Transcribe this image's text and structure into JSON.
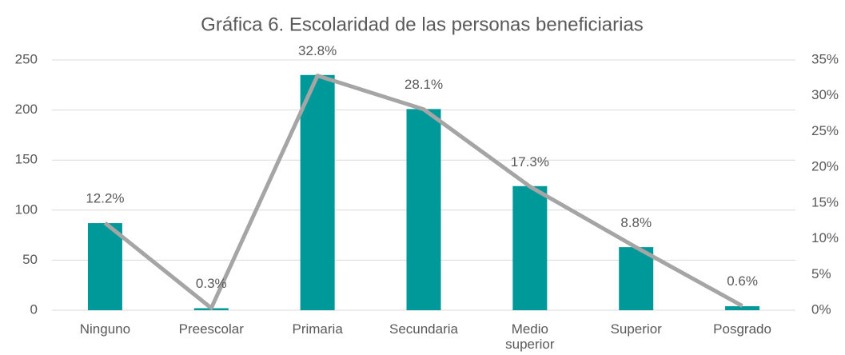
{
  "chart_data": {
    "type": "combo",
    "title": "Gráfica 6. Escolaridad de las personas beneficiarias",
    "categories": [
      "Ninguno",
      "Preescolar",
      "Primaria",
      "Secundaria",
      "Medio superior",
      "Superior",
      "Posgrado"
    ],
    "series": [
      {
        "type": "bar",
        "color": "#009999",
        "values": [
          87,
          2,
          235,
          201,
          124,
          63,
          4
        ]
      },
      {
        "type": "line",
        "axis": "y2",
        "color": "#a5a5a5",
        "values": [
          12.2,
          0.3,
          32.8,
          28.1,
          17.3,
          8.8,
          0.6
        ],
        "value_labels": [
          "12.2%",
          "0.3%",
          "32.8%",
          "28.1%",
          "17.3%",
          "8.8%",
          "0.6%"
        ]
      }
    ],
    "ylim": [
      0,
      250
    ],
    "yticks": [
      0,
      50,
      100,
      150,
      200,
      250
    ],
    "y2lim": [
      0,
      35
    ],
    "y2ticks": [
      {
        "value": 0,
        "label": "0%"
      },
      {
        "value": 5,
        "label": "5%"
      },
      {
        "value": 10,
        "label": "10%"
      },
      {
        "value": 15,
        "label": "15%"
      },
      {
        "value": 20,
        "label": "20%"
      },
      {
        "value": 25,
        "label": "25%"
      },
      {
        "value": 30,
        "label": "30%"
      },
      {
        "value": 35,
        "label": "35%"
      }
    ],
    "grid": true
  }
}
